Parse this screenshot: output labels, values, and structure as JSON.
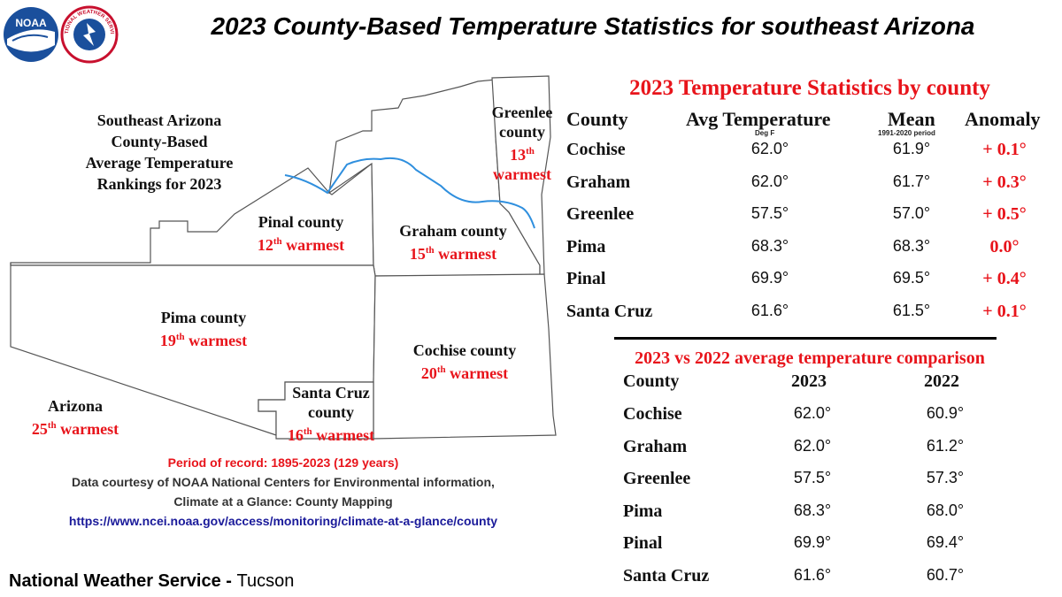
{
  "header": {
    "title": "2023 County-Based Temperature Statistics for southeast Arizona"
  },
  "logos": {
    "noaa": {
      "text": "NOAA"
    },
    "nws": {
      "text": "NATIONAL WEATHER SERVICE"
    }
  },
  "map": {
    "title_lines": [
      "Southeast Arizona",
      "County-Based",
      "Average Temperature",
      "Rankings for 2023"
    ],
    "counties": [
      {
        "name": "Greenlee",
        "label_lines": [
          "Greenlee",
          "county"
        ],
        "rank": "13",
        "suffix": "th",
        "rank_text": "warmest"
      },
      {
        "name": "Pinal",
        "label_lines": [
          "Pinal county"
        ],
        "rank": "12",
        "suffix": "th",
        "rank_text": "warmest"
      },
      {
        "name": "Graham",
        "label_lines": [
          "Graham county"
        ],
        "rank": "15",
        "suffix": "th",
        "rank_text": "warmest"
      },
      {
        "name": "Pima",
        "label_lines": [
          "Pima county"
        ],
        "rank": "19",
        "suffix": "th",
        "rank_text": "warmest"
      },
      {
        "name": "Cochise",
        "label_lines": [
          "Cochise county"
        ],
        "rank": "20",
        "suffix": "th",
        "rank_text": "warmest"
      },
      {
        "name": "Santa Cruz",
        "label_lines": [
          "Santa Cruz",
          "county"
        ],
        "rank": "16",
        "suffix": "th",
        "rank_text": "warmest"
      },
      {
        "name": "Arizona",
        "label_lines": [
          "Arizona"
        ],
        "rank": "25",
        "suffix": "th",
        "rank_text": "warmest"
      }
    ],
    "colors": {
      "border": "#555555",
      "river": "#2f8fde",
      "rank": "#e8141b"
    }
  },
  "credits": {
    "period": "Period of record: 1895-2023 (129 years)",
    "source_line1": "Data courtesy of NOAA National Centers for Environmental information,",
    "source_line2": "Climate at a Glance: County Mapping",
    "url": "https://www.ncei.noaa.gov/access/monitoring/climate-at-a-glance/county"
  },
  "footer": {
    "org": "National Weather Service",
    "separator": " - ",
    "office": "Tucson"
  },
  "stats_table": {
    "title": "2023 Temperature Statistics by county",
    "headers": {
      "county": "County",
      "avg": "Avg Temperature",
      "avg_sub": "Deg F",
      "mean": "Mean",
      "mean_sub": "1991-2020 period",
      "anomaly": "Anomaly"
    },
    "rows": [
      {
        "county": "Cochise",
        "avg": "62.0°",
        "mean": "61.9°",
        "anomaly": "+ 0.1°"
      },
      {
        "county": "Graham",
        "avg": "62.0°",
        "mean": "61.7°",
        "anomaly": "+ 0.3°"
      },
      {
        "county": "Greenlee",
        "avg": "57.5°",
        "mean": "57.0°",
        "anomaly": "+ 0.5°"
      },
      {
        "county": "Pima",
        "avg": "68.3°",
        "mean": "68.3°",
        "anomaly": "0.0°"
      },
      {
        "county": "Pinal",
        "avg": "69.9°",
        "mean": "69.5°",
        "anomaly": "+ 0.4°"
      },
      {
        "county": "Santa Cruz",
        "avg": "61.6°",
        "mean": "61.5°",
        "anomaly": "+ 0.1°"
      }
    ]
  },
  "compare_table": {
    "title": "2023 vs 2022 average temperature comparison",
    "headers": {
      "county": "County",
      "y2023": "2023",
      "y2022": "2022"
    },
    "rows": [
      {
        "county": "Cochise",
        "y2023": "62.0°",
        "y2022": "60.9°"
      },
      {
        "county": "Graham",
        "y2023": "62.0°",
        "y2022": "61.2°"
      },
      {
        "county": "Greenlee",
        "y2023": "57.5°",
        "y2022": "57.3°"
      },
      {
        "county": "Pima",
        "y2023": "68.3°",
        "y2022": "68.0°"
      },
      {
        "county": "Pinal",
        "y2023": "69.9°",
        "y2022": "69.4°"
      },
      {
        "county": "Santa Cruz",
        "y2023": "61.6°",
        "y2022": "60.7°"
      }
    ]
  }
}
